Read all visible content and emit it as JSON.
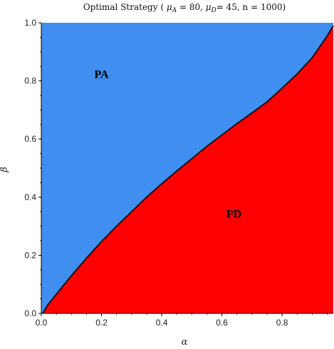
{
  "chart_data": {
    "type": "area",
    "title": "Optimal Strategy  ( μ_A = 80,  μ_D= 45,  n = 1000)",
    "title_parts": {
      "prefix": "Optimal Strategy  ( ",
      "mu_a_symbol": "μ",
      "mu_a_sub": "A",
      "mu_a_rest": " = 80,  ",
      "mu_d_symbol": "μ",
      "mu_d_sub": "D",
      "mu_d_rest": "= 45,  n = 1000)"
    },
    "xlabel": "α",
    "ylabel": "β",
    "xlim": [
      0.0,
      0.97
    ],
    "ylim": [
      0.0,
      1.0
    ],
    "x_ticks": [
      0.0,
      0.2,
      0.4,
      0.6,
      0.8
    ],
    "x_tick_labels": [
      "0.0",
      "0.2",
      "0.4",
      "0.6",
      "0.8"
    ],
    "y_ticks": [
      0.0,
      0.2,
      0.4,
      0.6,
      0.8,
      1.0
    ],
    "y_tick_labels": [
      "0.0",
      "0.2",
      "0.4",
      "0.6",
      "0.8",
      "1.0"
    ],
    "grid": false,
    "regions": [
      {
        "name": "PA",
        "color": "#3f8ef0",
        "side": "above",
        "label_at": [
          0.2,
          0.81
        ]
      },
      {
        "name": "PD",
        "color": "#ff0000",
        "side": "below",
        "label_at": [
          0.64,
          0.33
        ]
      }
    ],
    "boundary": {
      "x": [
        0.005,
        0.02,
        0.05,
        0.1,
        0.15,
        0.2,
        0.25,
        0.3,
        0.35,
        0.4,
        0.45,
        0.5,
        0.55,
        0.6,
        0.65,
        0.7,
        0.75,
        0.8,
        0.85,
        0.9,
        0.95,
        0.97
      ],
      "y": [
        0.0,
        0.027,
        0.066,
        0.13,
        0.19,
        0.247,
        0.3,
        0.35,
        0.4,
        0.446,
        0.49,
        0.532,
        0.575,
        0.614,
        0.653,
        0.69,
        0.728,
        0.775,
        0.824,
        0.88,
        0.955,
        0.99
      ]
    }
  },
  "colors": {
    "pa": "#3f8ef0",
    "pd": "#ff0000",
    "boundary": "#141414",
    "frame": "#000000"
  }
}
